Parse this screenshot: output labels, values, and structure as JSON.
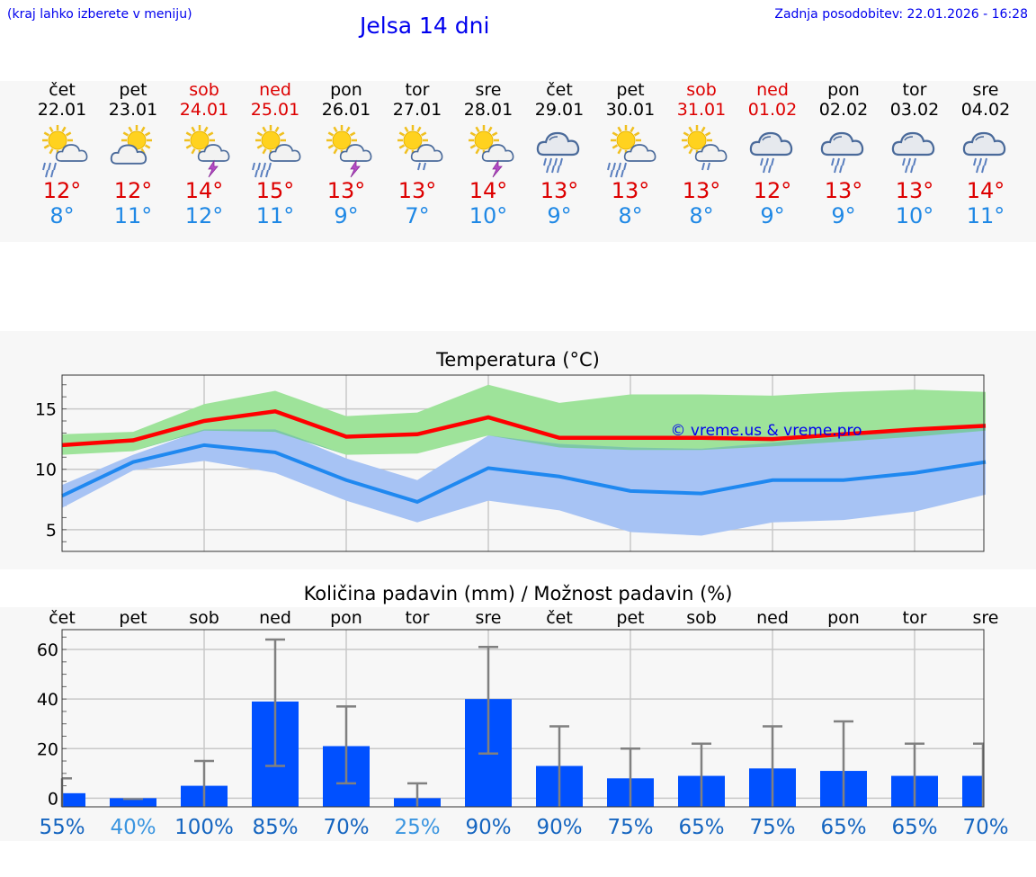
{
  "header": {
    "menu_hint": "(kraj lahko izberete v meniju)",
    "title": "Jelsa 14 dni",
    "updated": "Zadnja posodobitev: 22.01.2026 - 16:28"
  },
  "forecast": [
    {
      "day": "čet",
      "date": "22.01",
      "icon": "sun-cloud-rain-icon",
      "hi": "12°",
      "lo": "8°",
      "weekend": false
    },
    {
      "day": "pet",
      "date": "23.01",
      "icon": "sun-cloud-icon",
      "hi": "12°",
      "lo": "11°",
      "weekend": false
    },
    {
      "day": "sob",
      "date": "24.01",
      "icon": "sun-cloud-thunder-icon",
      "hi": "14°",
      "lo": "12°",
      "weekend": true
    },
    {
      "day": "ned",
      "date": "25.01",
      "icon": "sun-cloud-heavy-rain-icon",
      "hi": "15°",
      "lo": "11°",
      "weekend": true
    },
    {
      "day": "pon",
      "date": "26.01",
      "icon": "sun-cloud-thunder-icon",
      "hi": "13°",
      "lo": "9°",
      "weekend": false
    },
    {
      "day": "tor",
      "date": "27.01",
      "icon": "sun-cloud-light-rain-icon",
      "hi": "13°",
      "lo": "7°",
      "weekend": false
    },
    {
      "day": "sre",
      "date": "28.01",
      "icon": "sun-cloud-thunder-icon",
      "hi": "14°",
      "lo": "10°",
      "weekend": false
    },
    {
      "day": "čet",
      "date": "29.01",
      "icon": "cloud-heavy-rain-icon",
      "hi": "13°",
      "lo": "9°",
      "weekend": false
    },
    {
      "day": "pet",
      "date": "30.01",
      "icon": "sun-cloud-heavy-rain-icon",
      "hi": "13°",
      "lo": "8°",
      "weekend": false
    },
    {
      "day": "sob",
      "date": "31.01",
      "icon": "sun-cloud-light-rain-icon",
      "hi": "13°",
      "lo": "8°",
      "weekend": true
    },
    {
      "day": "ned",
      "date": "01.02",
      "icon": "cloud-rain-icon",
      "hi": "12°",
      "lo": "9°",
      "weekend": true
    },
    {
      "day": "pon",
      "date": "02.02",
      "icon": "cloud-rain-icon",
      "hi": "13°",
      "lo": "9°",
      "weekend": false
    },
    {
      "day": "tor",
      "date": "03.02",
      "icon": "cloud-rain-icon",
      "hi": "13°",
      "lo": "10°",
      "weekend": false
    },
    {
      "day": "sre",
      "date": "04.02",
      "icon": "cloud-rain-icon",
      "hi": "14°",
      "lo": "11°",
      "weekend": false
    }
  ],
  "colors": {
    "max_line": "#ff0000",
    "min_line": "#1f88f0",
    "max_band": "#9ee39a",
    "min_band": "#a7c3f4",
    "overlap_band": "#7cc8a6",
    "bar": "#0050ff",
    "err": "#808080",
    "grid": "#c8c8c8"
  },
  "chart_data": [
    {
      "type": "line",
      "title": "Temperatura (°C)",
      "watermark": "© vreme.us & vreme.pro",
      "ylim": [
        3.2,
        17.8
      ],
      "yticks": [
        5,
        10,
        15
      ],
      "series": [
        {
          "name": "max",
          "values": [
            12.0,
            12.4,
            14.0,
            14.8,
            12.7,
            12.9,
            14.3,
            12.6,
            12.6,
            12.6,
            12.5,
            12.9,
            13.3,
            13.6
          ],
          "band_low": [
            11.2,
            11.5,
            13.2,
            13.1,
            11.2,
            11.3,
            12.8,
            11.8,
            11.6,
            11.6,
            11.9,
            12.3,
            12.7,
            13.2
          ],
          "band_high": [
            12.9,
            13.1,
            15.4,
            16.5,
            14.4,
            14.7,
            17.0,
            15.5,
            16.2,
            16.2,
            16.1,
            16.4,
            16.6,
            16.4
          ]
        },
        {
          "name": "min",
          "values": [
            7.8,
            10.6,
            12.0,
            11.4,
            9.1,
            7.3,
            10.1,
            9.4,
            8.2,
            8.0,
            9.1,
            9.1,
            9.7,
            10.6
          ],
          "band_low": [
            6.8,
            9.9,
            10.7,
            9.7,
            7.4,
            5.6,
            7.4,
            6.6,
            4.8,
            4.5,
            5.6,
            5.8,
            6.5,
            7.9
          ],
          "band_high": [
            8.7,
            11.2,
            13.3,
            13.3,
            10.9,
            9.1,
            12.8,
            12.1,
            11.8,
            11.7,
            12.2,
            12.7,
            13.2,
            13.5
          ]
        }
      ]
    },
    {
      "type": "bar",
      "title": "Količina padavin (mm) / Možnost padavin (%)",
      "categories": [
        "čet",
        "pet",
        "sob",
        "ned",
        "pon",
        "tor",
        "sre",
        "čet",
        "pet",
        "sob",
        "ned",
        "pon",
        "tor",
        "sre"
      ],
      "values": [
        2,
        0,
        5,
        39,
        21,
        0,
        40,
        13,
        8,
        9,
        12,
        11,
        9,
        9
      ],
      "err_low": [
        0,
        0,
        0,
        13,
        6,
        0,
        18,
        0,
        0,
        0,
        0,
        0,
        0,
        0
      ],
      "err_high": [
        8,
        0,
        15,
        64,
        37,
        6,
        61,
        29,
        20,
        22,
        29,
        31,
        22,
        22
      ],
      "chance": [
        "55%",
        "40%",
        "100%",
        "85%",
        "70%",
        "25%",
        "90%",
        "90%",
        "75%",
        "65%",
        "75%",
        "65%",
        "65%",
        "70%"
      ],
      "ylim": [
        -3.5,
        68
      ],
      "yticks": [
        0,
        20,
        40,
        60
      ]
    }
  ]
}
